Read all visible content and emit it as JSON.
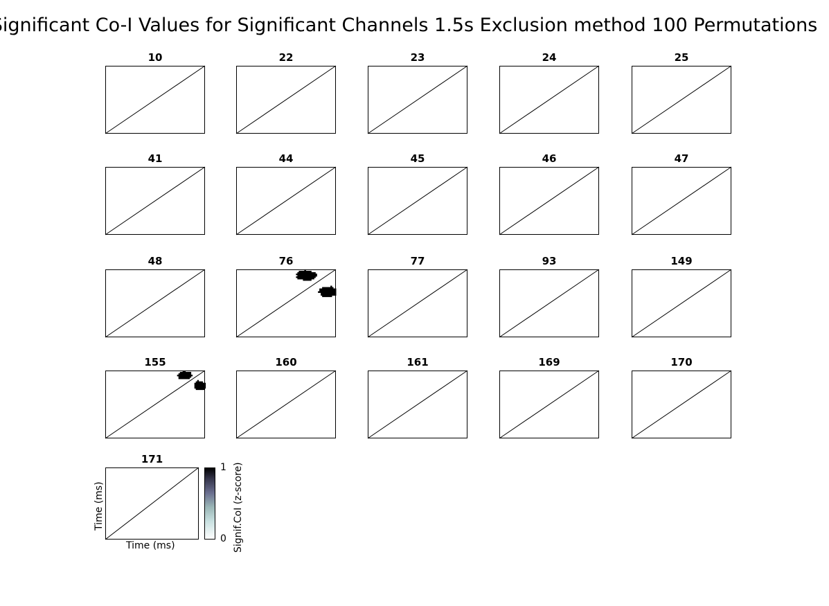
{
  "title": "Significant Co-I Values for Significant Channels 1.5s Exclusion method 100 Permutations",
  "colors": {
    "mask": "#000000",
    "frame": "#000000",
    "diagonal": "#000000",
    "background": "#ffffff"
  },
  "chart_data": {
    "type": "heatmap",
    "colormap": "bone_r",
    "grid": false,
    "xlabel": "Time (ms)",
    "ylabel": "Time (ms)",
    "colorbar": {
      "label": "Signif.CoI (z-score)",
      "ticks": [
        "0",
        "1"
      ],
      "range": [
        0,
        1
      ]
    },
    "panels": [
      {
        "channel": "10",
        "significant_regions": []
      },
      {
        "channel": "22",
        "significant_regions": []
      },
      {
        "channel": "23",
        "significant_regions": []
      },
      {
        "channel": "24",
        "significant_regions": []
      },
      {
        "channel": "25",
        "significant_regions": []
      },
      {
        "channel": "41",
        "significant_regions": []
      },
      {
        "channel": "44",
        "significant_regions": []
      },
      {
        "channel": "45",
        "significant_regions": []
      },
      {
        "channel": "46",
        "significant_regions": []
      },
      {
        "channel": "47",
        "significant_regions": []
      },
      {
        "channel": "48",
        "significant_regions": []
      },
      {
        "channel": "76",
        "significant_regions": [
          {
            "x": [
              0.6,
              0.8
            ],
            "y": [
              0.84,
              1.0
            ],
            "value": 1
          },
          {
            "x": [
              0.82,
              1.0
            ],
            "y": [
              0.6,
              0.76
            ],
            "value": 1
          }
        ]
      },
      {
        "channel": "77",
        "significant_regions": []
      },
      {
        "channel": "93",
        "significant_regions": []
      },
      {
        "channel": "149",
        "significant_regions": []
      },
      {
        "channel": "155",
        "significant_regions": [
          {
            "x": [
              0.72,
              0.86
            ],
            "y": [
              0.88,
              1.0
            ],
            "value": 1
          },
          {
            "x": [
              0.88,
              1.0
            ],
            "y": [
              0.72,
              0.86
            ],
            "value": 1
          }
        ]
      },
      {
        "channel": "160",
        "significant_regions": []
      },
      {
        "channel": "161",
        "significant_regions": []
      },
      {
        "channel": "169",
        "significant_regions": []
      },
      {
        "channel": "170",
        "significant_regions": []
      },
      {
        "channel": "171",
        "significant_regions": []
      }
    ]
  }
}
